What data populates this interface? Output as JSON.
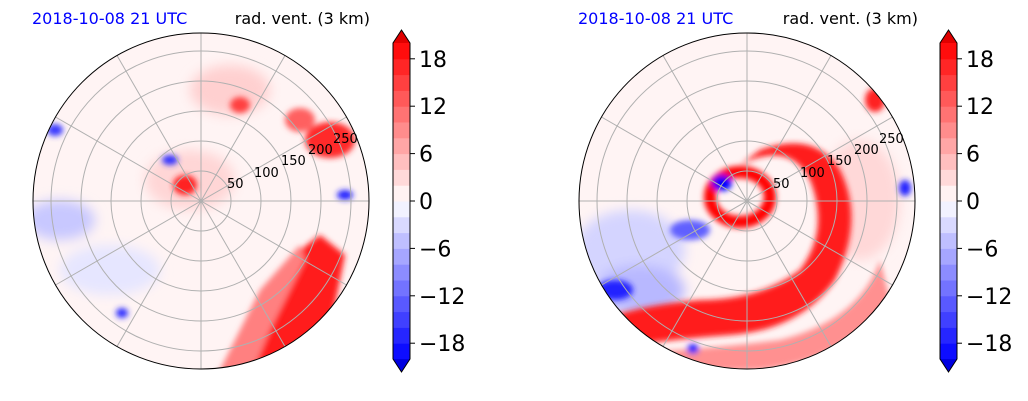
{
  "chart_data": [
    {
      "type": "heatmap",
      "subtype": "polar",
      "title_left": "2018-10-08 21 UTC",
      "title_right": "rad. vent. (3 km)",
      "radial_ticks": [
        50,
        100,
        150,
        200,
        250
      ],
      "radial_lim": [
        0,
        280
      ],
      "angular_gridline_step_deg": 30,
      "colorbar": {
        "ticks": [
          18,
          12,
          6,
          0,
          -6,
          -12,
          -18
        ],
        "tick_labels": [
          "18",
          "12",
          "6",
          "0",
          "−6",
          "−12",
          "−18"
        ],
        "lim": [
          -20,
          20
        ],
        "levels_step": 2,
        "extend": "both",
        "cmap": "bwr"
      },
      "features": [
        {
          "kind": "positive",
          "desc": "strong band",
          "r_range": [
            120,
            280
          ],
          "theta_deg_range": [
            -80,
            -55
          ],
          "value": 20
        },
        {
          "kind": "positive",
          "desc": "northeast cluster",
          "r_range": [
            150,
            280
          ],
          "theta_deg_range": [
            15,
            35
          ],
          "value": 18
        },
        {
          "kind": "negative",
          "desc": "west patch",
          "r_range": [
            200,
            280
          ],
          "theta_deg_range": [
            170,
            190
          ],
          "value": -8
        }
      ]
    },
    {
      "type": "heatmap",
      "subtype": "polar",
      "title_left": "2018-10-08 21 UTC",
      "title_right": "rad. vent. (3 km)",
      "radial_ticks": [
        50,
        100,
        150,
        200,
        250
      ],
      "radial_lim": [
        0,
        280
      ],
      "angular_gridline_step_deg": 30,
      "colorbar": {
        "ticks": [
          18,
          12,
          6,
          0,
          -6,
          -12,
          -18
        ],
        "tick_labels": [
          "18",
          "12",
          "6",
          "0",
          "−6",
          "−12",
          "−18"
        ],
        "lim": [
          -20,
          20
        ],
        "levels_step": 2,
        "extend": "both",
        "cmap": "bwr"
      },
      "features": [
        {
          "kind": "positive",
          "desc": "inner ring",
          "r_range": [
            30,
            55
          ],
          "theta_deg_range": [
            -90,
            270
          ],
          "value": 20
        },
        {
          "kind": "positive",
          "desc": "spiral band",
          "r_range": [
            60,
            260
          ],
          "theta_deg_range": [
            -110,
            60
          ],
          "value": 20
        },
        {
          "kind": "negative",
          "desc": "west rainband",
          "r_range": [
            120,
            280
          ],
          "theta_deg_range": [
            160,
            230
          ],
          "value": -10
        }
      ]
    }
  ],
  "colors": {
    "neg_strong": "#0000ff",
    "neg_light": "#e6e6ff",
    "zero": "#ffffff",
    "pos_light": "#ffe6e6",
    "pos_strong": "#ff0000",
    "title_left": "#0000ff",
    "title_right": "#000000",
    "grid": "#b0b0b0"
  }
}
